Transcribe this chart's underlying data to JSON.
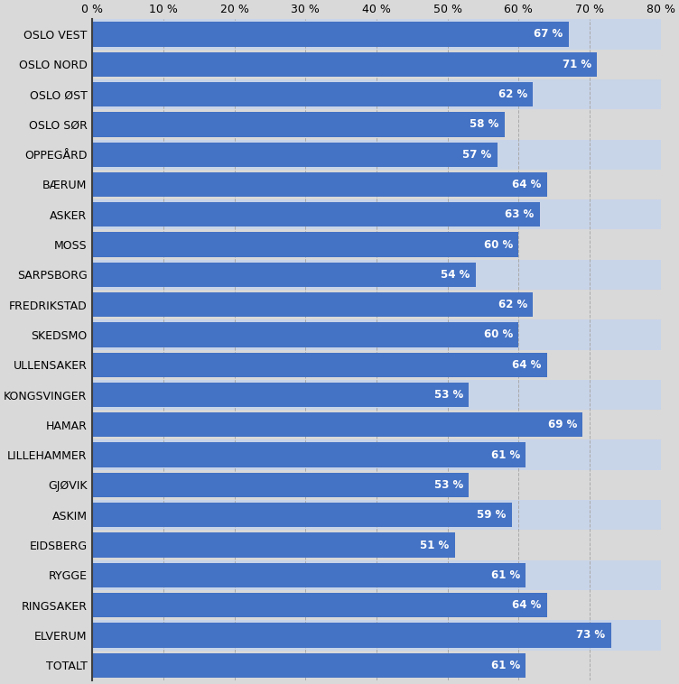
{
  "categories": [
    "OSLO VEST",
    "OSLO NORD",
    "OSLO ØST",
    "OSLO SØR",
    "OPPEGÅRD",
    "BÆRUM",
    "ASKER",
    "MOSS",
    "SARPSBORG",
    "FREDRIKSTAD",
    "SKEDSMO",
    "ULLENSAKER",
    "KONGSVINGER",
    "HAMAR",
    "LILLEHAMMER",
    "GJØVIK",
    "ASKIM",
    "EIDSBERG",
    "RYGGE",
    "RINGSAKER",
    "ELVERUM",
    "TOTALT"
  ],
  "values": [
    67,
    71,
    62,
    58,
    57,
    64,
    63,
    60,
    54,
    62,
    60,
    64,
    53,
    69,
    61,
    53,
    59,
    51,
    61,
    64,
    73,
    61
  ],
  "bar_color": "#4472C4",
  "background_color": "#D9D9D9",
  "row_color_even": "#C8D4E8",
  "row_color_odd": "#D9D9D9",
  "label_color": "#FFFFFF",
  "grid_color": "#AAAAAA",
  "spine_color": "#404040",
  "xlim": [
    0,
    80
  ],
  "xticks": [
    0,
    10,
    20,
    30,
    40,
    50,
    60,
    70,
    80
  ],
  "label_fontsize": 8.5,
  "tick_fontsize": 9,
  "ytick_fontsize": 9,
  "bar_height": 0.82
}
